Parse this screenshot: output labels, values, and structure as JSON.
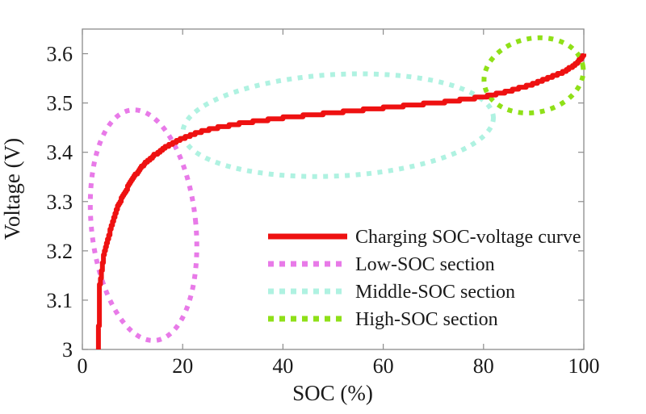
{
  "chart_data": {
    "type": "line",
    "title": "",
    "xlabel": "SOC (%)",
    "ylabel": "Voltage (V)",
    "xlim": [
      0,
      100
    ],
    "ylim": [
      3.0,
      3.65
    ],
    "grid": false,
    "legend_position": "inside-center-right",
    "x_ticks": {
      "values": [
        0,
        20,
        40,
        60,
        80,
        100
      ],
      "labels": [
        "0",
        "20",
        "40",
        "60",
        "80",
        "100"
      ]
    },
    "y_ticks": {
      "values": [
        3.0,
        3.1,
        3.2,
        3.3,
        3.4,
        3.5,
        3.6
      ],
      "labels": [
        "3",
        "3.1",
        "3.2",
        "3.3",
        "3.4",
        "3.5",
        "3.6"
      ]
    },
    "series": [
      {
        "name": "Charging SOC-voltage curve",
        "color": "#ee1111",
        "style": "solid-stepped",
        "points": [
          [
            3.2,
            3.0
          ],
          [
            3.2,
            3.05
          ],
          [
            3.4,
            3.09
          ],
          [
            3.4,
            3.13
          ],
          [
            3.8,
            3.16
          ],
          [
            4.2,
            3.19
          ],
          [
            5,
            3.225
          ],
          [
            6,
            3.26
          ],
          [
            7,
            3.29
          ],
          [
            8,
            3.312
          ],
          [
            9,
            3.33
          ],
          [
            10,
            3.347
          ],
          [
            11,
            3.361
          ],
          [
            12,
            3.373
          ],
          [
            13,
            3.383
          ],
          [
            14,
            3.392
          ],
          [
            15,
            3.4
          ],
          [
            16,
            3.407
          ],
          [
            17,
            3.413
          ],
          [
            18,
            3.419
          ],
          [
            19,
            3.424
          ],
          [
            20,
            3.429
          ],
          [
            22,
            3.437
          ],
          [
            24,
            3.443
          ],
          [
            26,
            3.448
          ],
          [
            28,
            3.452
          ],
          [
            30,
            3.456
          ],
          [
            33,
            3.461
          ],
          [
            36,
            3.465
          ],
          [
            40,
            3.47
          ],
          [
            44,
            3.474
          ],
          [
            48,
            3.478
          ],
          [
            52,
            3.482
          ],
          [
            56,
            3.486
          ],
          [
            60,
            3.49
          ],
          [
            64,
            3.494
          ],
          [
            68,
            3.498
          ],
          [
            72,
            3.502
          ],
          [
            76,
            3.507
          ],
          [
            80,
            3.513
          ],
          [
            83,
            3.519
          ],
          [
            86,
            3.527
          ],
          [
            89,
            3.536
          ],
          [
            92,
            3.547
          ],
          [
            94,
            3.555
          ],
          [
            96,
            3.564
          ],
          [
            98,
            3.577
          ],
          [
            99,
            3.586
          ],
          [
            100,
            3.598
          ]
        ]
      }
    ],
    "annotations": [
      {
        "name": "Low-SOC section",
        "shape": "dotted-ellipse",
        "color": "#e87ae8",
        "center": [
          12.2,
          3.252
        ],
        "rx_soc": 10.4,
        "ry_v": 0.235,
        "rotation_deg": -6
      },
      {
        "name": "Middle-SOC section",
        "shape": "dotted-ellipse",
        "color": "#aff2e1",
        "center": [
          51.0,
          3.455
        ],
        "rx_soc": 31.0,
        "ry_v": 0.103,
        "rotation_deg": -3
      },
      {
        "name": "High-SOC section",
        "shape": "dotted-ellipse",
        "color": "#8fe018",
        "center": [
          90.0,
          3.556
        ],
        "rx_soc": 10.0,
        "ry_v": 0.075,
        "rotation_deg": -12
      }
    ],
    "legend": [
      {
        "label": "Charging SOC-voltage curve",
        "color": "#ee1111",
        "style": "solid"
      },
      {
        "label": "Low-SOC section",
        "color": "#e87ae8",
        "style": "dotted"
      },
      {
        "label": "Middle-SOC section",
        "color": "#aff2e1",
        "style": "dotted"
      },
      {
        "label": "High-SOC section",
        "color": "#8fe018",
        "style": "dotted"
      }
    ],
    "axis_color": "#8c8c8c",
    "text_color": "#1a1a1a",
    "background": "#ffffff"
  }
}
